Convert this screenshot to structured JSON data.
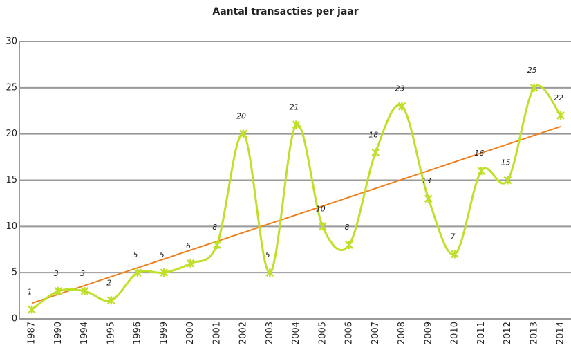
{
  "chart_data": {
    "type": "line",
    "title": "Aantal transacties per jaar",
    "categories": [
      "1987",
      "1990",
      "1994",
      "1995",
      "1996",
      "1999",
      "2000",
      "2001",
      "2002",
      "2003",
      "2004",
      "2005",
      "2006",
      "2007",
      "2008",
      "2009",
      "2010",
      "2011",
      "2012",
      "2013",
      "2014"
    ],
    "values": [
      1,
      3,
      3,
      2,
      5,
      5,
      6,
      8,
      20,
      5,
      21,
      10,
      8,
      18,
      23,
      13,
      7,
      16,
      15,
      25,
      22
    ],
    "color": "#bfe02a",
    "trendline": {
      "color": "#ef7f1a",
      "values": [
        1.7,
        20.8
      ]
    },
    "ylim": [
      0,
      30
    ],
    "yticks": [
      0,
      5,
      10,
      15,
      20,
      25,
      30
    ],
    "grid": true
  }
}
